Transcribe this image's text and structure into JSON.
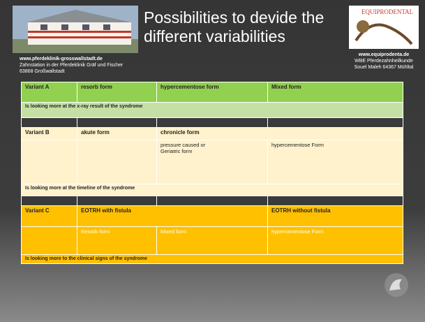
{
  "header": {
    "left_lines": [
      "www.pferdeklinik-grosswallstadt.de",
      "Zahnstation in der Pferdeklinik Gräf und Fischer",
      "63868 Großwallstadt"
    ],
    "title": "Possibilities to devide the different variabilities",
    "logo_text": "EQUIPRODENTAL",
    "right_lines": [
      "www.equiprodenta.de",
      "WBE Pferdezahnheilkunde",
      "Souel Maleh 64367 Mühltal"
    ]
  },
  "table": {
    "groups": [
      {
        "header": [
          "Variant A",
          "resorb form",
          "hypercementose form",
          "Mixed form"
        ],
        "note": "Is looking more at the x-ray result of the syndrome"
      },
      {
        "header": [
          "Variant B",
          "akute form",
          "chronicle form"
        ],
        "details": [
          "pressure caused or Geriatric form",
          "hypercementose Form"
        ],
        "note": "Is looking more at the timeline of the syndrome"
      },
      {
        "header": [
          "Variant C",
          "EOTRH with fistula",
          "EOTRH without fistula"
        ],
        "details": [
          "Resorb form",
          "Mixed form",
          "hypercementose Form"
        ],
        "note": "Is looking more to the clinical signs of the syndrome"
      }
    ]
  }
}
